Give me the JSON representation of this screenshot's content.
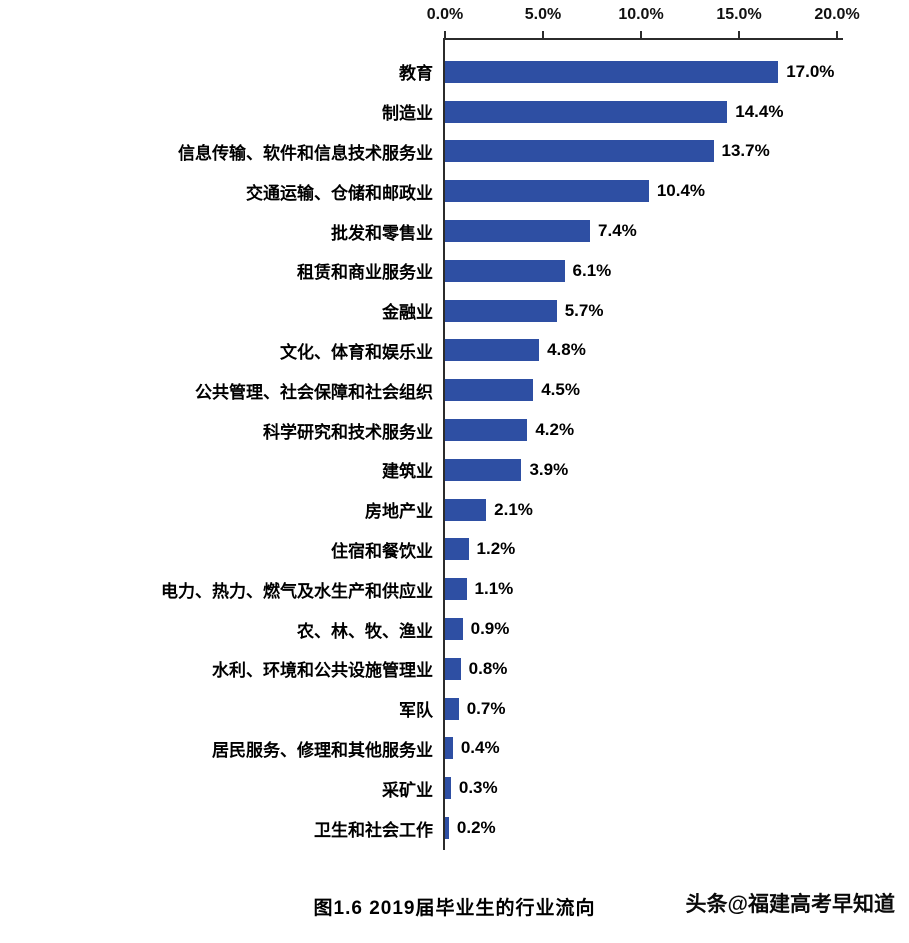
{
  "chart_data": {
    "type": "bar",
    "orientation": "horizontal",
    "title": "图1.6 2019届毕业生的行业流向",
    "categories": [
      "教育",
      "制造业",
      "信息传输、软件和信息技术服务业",
      "交通运输、仓储和邮政业",
      "批发和零售业",
      "租赁和商业服务业",
      "金融业",
      "文化、体育和娱乐业",
      "公共管理、社会保障和社会组织",
      "科学研究和技术服务业",
      "建筑业",
      "房地产业",
      "住宿和餐饮业",
      "电力、热力、燃气及水生产和供应业",
      "农、林、牧、渔业",
      "水利、环境和公共设施管理业",
      "军队",
      "居民服务、修理和其他服务业",
      "采矿业",
      "卫生和社会工作"
    ],
    "values": [
      17.0,
      14.4,
      13.7,
      10.4,
      7.4,
      6.1,
      5.7,
      4.8,
      4.5,
      4.2,
      3.9,
      2.1,
      1.2,
      1.1,
      0.9,
      0.8,
      0.7,
      0.4,
      0.3,
      0.2
    ],
    "value_labels": [
      "17.0%",
      "14.4%",
      "13.7%",
      "10.4%",
      "7.4%",
      "6.1%",
      "5.7%",
      "4.8%",
      "4.5%",
      "4.2%",
      "3.9%",
      "2.1%",
      "1.2%",
      "1.1%",
      "0.9%",
      "0.8%",
      "0.7%",
      "0.4%",
      "0.3%",
      "0.2%"
    ],
    "x_ticks": [
      "0.0%",
      "5.0%",
      "10.0%",
      "15.0%",
      "20.0%"
    ],
    "xlim": [
      0,
      20
    ],
    "bar_color": "#2E4FA3",
    "axis_color": "#2b2b2b",
    "grid": "off",
    "legend": "none"
  },
  "caption": "图1.6 2019届毕业生的行业流向",
  "watermark": "头条@福建高考早知道"
}
